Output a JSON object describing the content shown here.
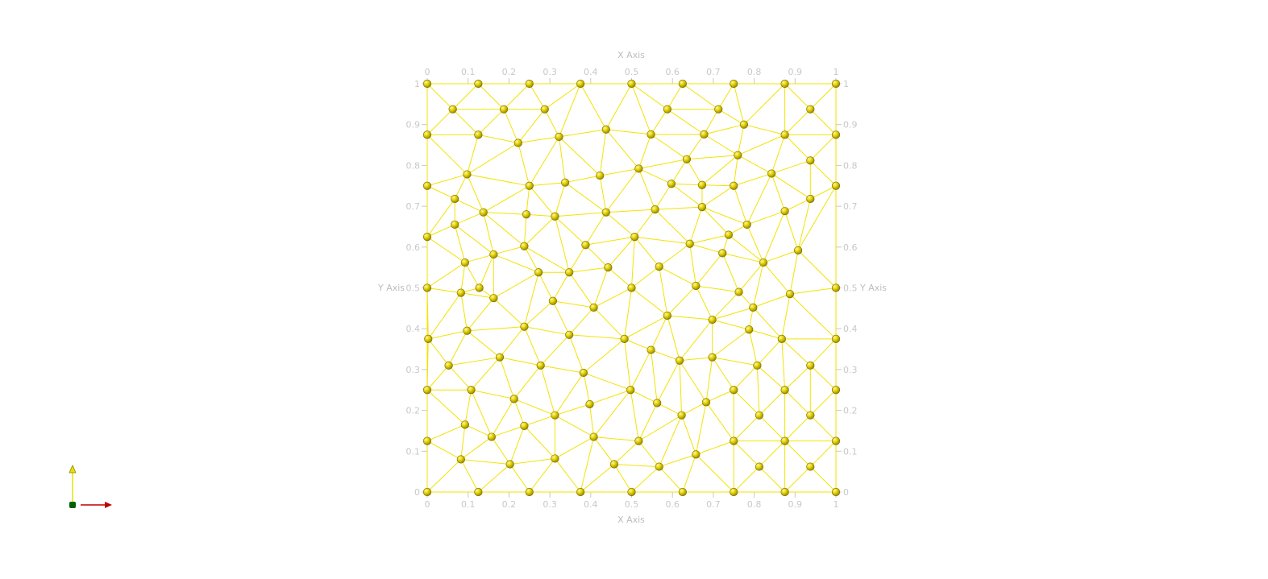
{
  "axes": {
    "x_title": "X Axis",
    "y_title": "Y Axis",
    "ticks": [
      "0",
      "0.1",
      "0.2",
      "0.3",
      "0.4",
      "0.5",
      "0.6",
      "0.7",
      "0.8",
      "0.9",
      "1"
    ],
    "tick_values": [
      0,
      0.1,
      0.2,
      0.3,
      0.4,
      0.5,
      0.6,
      0.7,
      0.8,
      0.9,
      1
    ],
    "xlim": [
      0,
      1
    ],
    "ylim": [
      0,
      1
    ],
    "grid": false
  },
  "colors": {
    "node": "#e8d800",
    "edge": "#f3e300",
    "axis": "#cccccc",
    "orientation_x": "#c00000",
    "orientation_y": "#e8e000",
    "orientation_z": "#006000"
  },
  "mesh": {
    "nodes": [
      [
        0,
        1
      ],
      [
        0.125,
        1
      ],
      [
        0.25,
        1
      ],
      [
        0.375,
        1
      ],
      [
        0.5,
        1
      ],
      [
        0.625,
        1
      ],
      [
        0.75,
        1
      ],
      [
        0.875,
        1
      ],
      [
        1,
        1
      ],
      [
        0.0625,
        0.9375
      ],
      [
        0.1875,
        0.9375
      ],
      [
        0.2875,
        0.9375
      ],
      [
        0.5875,
        0.9375
      ],
      [
        0.7125,
        0.9375
      ],
      [
        0.9375,
        0.9375
      ],
      [
        0,
        0.875
      ],
      [
        0.125,
        0.875
      ],
      [
        0.2225,
        0.855
      ],
      [
        0.3225,
        0.87
      ],
      [
        0.4375,
        0.888
      ],
      [
        0.5475,
        0.876
      ],
      [
        0.6775,
        0.876
      ],
      [
        0.775,
        0.9
      ],
      [
        0.875,
        0.875
      ],
      [
        1,
        0.875
      ],
      [
        0.635,
        0.815
      ],
      [
        0.76,
        0.825
      ],
      [
        0.9375,
        0.812
      ],
      [
        0.0975,
        0.778
      ],
      [
        0.5175,
        0.792
      ],
      [
        0.4225,
        0.775
      ],
      [
        0.8425,
        0.78
      ],
      [
        0,
        0.75
      ],
      [
        0.25,
        0.75
      ],
      [
        0.3375,
        0.758
      ],
      [
        0.5975,
        0.755
      ],
      [
        0.6725,
        0.752
      ],
      [
        0.75,
        0.75
      ],
      [
        1,
        0.75
      ],
      [
        0.0675,
        0.718
      ],
      [
        0.9375,
        0.718
      ],
      [
        0.1375,
        0.685
      ],
      [
        0.2425,
        0.68
      ],
      [
        0.3125,
        0.675
      ],
      [
        0.4375,
        0.685
      ],
      [
        0.5575,
        0.692
      ],
      [
        0.6725,
        0.698
      ],
      [
        0.875,
        0.688
      ],
      [
        0.0675,
        0.655
      ],
      [
        0.7825,
        0.655
      ],
      [
        0,
        0.625
      ],
      [
        0.5075,
        0.625
      ],
      [
        0.7375,
        0.63
      ],
      [
        0.2375,
        0.602
      ],
      [
        0.3875,
        0.605
      ],
      [
        0.6425,
        0.608
      ],
      [
        0.1625,
        0.582
      ],
      [
        0.9075,
        0.592
      ],
      [
        0.7225,
        0.585
      ],
      [
        0.0925,
        0.562
      ],
      [
        0.8225,
        0.562
      ],
      [
        0.5675,
        0.552
      ],
      [
        0.4425,
        0.55
      ],
      [
        0.2725,
        0.538
      ],
      [
        0.3475,
        0.538
      ],
      [
        0,
        0.5
      ],
      [
        0.5,
        0.5
      ],
      [
        0.6575,
        0.505
      ],
      [
        0.1275,
        0.5
      ],
      [
        0.0825,
        0.488
      ],
      [
        0.7625,
        0.49
      ],
      [
        0.8875,
        0.485
      ],
      [
        1,
        0.5
      ],
      [
        0.1625,
        0.475
      ],
      [
        0.3075,
        0.468
      ],
      [
        0.4075,
        0.452
      ],
      [
        0.7975,
        0.452
      ],
      [
        0.5875,
        0.432
      ],
      [
        0.6975,
        0.422
      ],
      [
        0.2375,
        0.405
      ],
      [
        0.0975,
        0.395
      ],
      [
        0.7875,
        0.398
      ],
      [
        0.3475,
        0.385
      ],
      [
        0.0025,
        0.375
      ],
      [
        0.4825,
        0.375
      ],
      [
        0.8675,
        0.375
      ],
      [
        1,
        0.375
      ],
      [
        0.5475,
        0.348
      ],
      [
        0.6975,
        0.33
      ],
      [
        0.1775,
        0.33
      ],
      [
        0.6175,
        0.322
      ],
      [
        0.0525,
        0.31
      ],
      [
        0.8075,
        0.31
      ],
      [
        0.9375,
        0.31
      ],
      [
        0.2775,
        0.31
      ],
      [
        0.3825,
        0.292
      ],
      [
        0,
        0.25
      ],
      [
        0.1075,
        0.25
      ],
      [
        0.4975,
        0.25
      ],
      [
        0.75,
        0.25
      ],
      [
        0.875,
        0.25
      ],
      [
        1,
        0.25
      ],
      [
        0.2125,
        0.228
      ],
      [
        0.3975,
        0.215
      ],
      [
        0.5625,
        0.218
      ],
      [
        0.6825,
        0.22
      ],
      [
        0.3125,
        0.188
      ],
      [
        0.6225,
        0.188
      ],
      [
        0.8125,
        0.188
      ],
      [
        0.9375,
        0.188
      ],
      [
        0.0925,
        0.165
      ],
      [
        0.2375,
        0.162
      ],
      [
        0.1575,
        0.135
      ],
      [
        0.4075,
        0.135
      ],
      [
        0,
        0.125
      ],
      [
        0.5175,
        0.125
      ],
      [
        0.75,
        0.125
      ],
      [
        0.875,
        0.125
      ],
      [
        1,
        0.125
      ],
      [
        0.6575,
        0.092
      ],
      [
        0.0825,
        0.08
      ],
      [
        0.3125,
        0.082
      ],
      [
        0.2025,
        0.068
      ],
      [
        0.4575,
        0.068
      ],
      [
        0.5675,
        0.062
      ],
      [
        0.8125,
        0.062
      ],
      [
        0.9375,
        0.062
      ],
      [
        0,
        0
      ],
      [
        0.125,
        0
      ],
      [
        0.25,
        0
      ],
      [
        0.375,
        0
      ],
      [
        0.5,
        0
      ],
      [
        0.625,
        0
      ],
      [
        0.75,
        0
      ],
      [
        0.875,
        0
      ],
      [
        1,
        0
      ]
    ]
  }
}
